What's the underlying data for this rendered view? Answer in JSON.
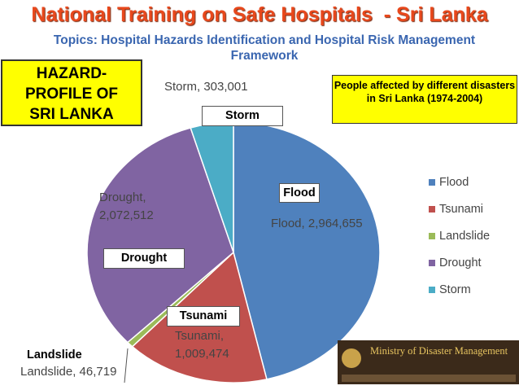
{
  "header": {
    "title": "National Training on Safe Hospitals  - Sri Lanka",
    "subtitle": "Topics: Hospital Hazards Identification and Hospital Risk Management Framework"
  },
  "hazard_box": [
    "HAZARD-",
    "PROFILE OF",
    "SRI LANKA"
  ],
  "chart_data": {
    "type": "pie",
    "title": "People affected by different disasters in Sri Lanka (1974-2004)",
    "categories": [
      "Flood",
      "Tsunami",
      "Landslide",
      "Drought",
      "Storm"
    ],
    "values": [
      2964655,
      1009474,
      46719,
      2072512,
      303001
    ],
    "value_labels": [
      "Flood, 2,964,655",
      "Tsunami, 1,009,474",
      "Landslide, 46,719",
      "Drought, 2,072,512",
      "Storm, 303,001"
    ],
    "colors": [
      "#4f81bd",
      "#c0504d",
      "#9bbb59",
      "#8064a2",
      "#4bacc6"
    ],
    "legend": "right"
  },
  "logo": {
    "title": "Ministry of Disaster Management"
  }
}
